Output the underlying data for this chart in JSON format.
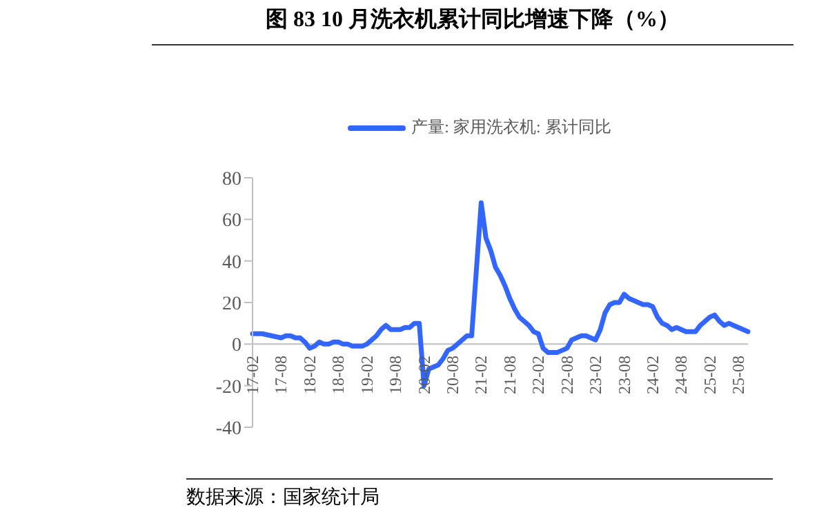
{
  "chart_data": {
    "type": "line",
    "title": "图 83 10 月洗衣机累计同比增速下降（%）",
    "categories": [
      "17-02",
      null,
      null,
      null,
      null,
      null,
      "17-08",
      null,
      null,
      null,
      null,
      null,
      "18-02",
      null,
      null,
      null,
      null,
      null,
      "18-08",
      null,
      null,
      null,
      null,
      null,
      "19-02",
      null,
      null,
      null,
      null,
      null,
      "19-08",
      null,
      null,
      null,
      null,
      null,
      "20-02",
      null,
      null,
      null,
      null,
      null,
      "20-08",
      null,
      null,
      null,
      null,
      null,
      "21-02",
      null,
      null,
      null,
      null,
      null,
      "21-08",
      null,
      null,
      null,
      null,
      null,
      "22-02",
      null,
      null,
      null,
      null,
      null,
      "22-08",
      null,
      null,
      null,
      null,
      null,
      "23-02",
      null,
      null,
      null,
      null,
      null,
      "23-08",
      null,
      null,
      null,
      null,
      null,
      "24-02",
      null,
      null,
      null,
      null,
      null,
      "24-08",
      null,
      null,
      null,
      null,
      null,
      "25-02",
      null,
      null,
      null,
      null,
      null,
      "25-08",
      null,
      null
    ],
    "series": [
      {
        "name": "产量: 家用洗衣机: 累计同比",
        "color": "#3366ff",
        "values": [
          5,
          5,
          5,
          4.5,
          4,
          3.5,
          3,
          4,
          4,
          3,
          3,
          1,
          -2,
          -1,
          1,
          0,
          0,
          1,
          1,
          0,
          0,
          -1,
          -1,
          -1,
          0,
          2,
          4,
          7,
          9,
          7,
          7,
          7,
          8,
          8,
          10,
          10,
          -20,
          -12,
          -11,
          -10,
          -7,
          -3,
          -2,
          0,
          2,
          4,
          4,
          36,
          68,
          51,
          45,
          37,
          33,
          28,
          22,
          17,
          13,
          11,
          9,
          6,
          5,
          -2,
          -4,
          -4,
          -4,
          -3,
          -2,
          2,
          3,
          4,
          4,
          3,
          2,
          7,
          15,
          19,
          20,
          20,
          24,
          22,
          21,
          20,
          19,
          19,
          18,
          13,
          10,
          9,
          7,
          8,
          7,
          6,
          6,
          6,
          9,
          11,
          13,
          14,
          11,
          9,
          10,
          9,
          8,
          7,
          6
        ]
      }
    ],
    "ylim": [
      -40,
      80
    ],
    "yticks": [
      -40,
      -20,
      0,
      20,
      40,
      60,
      80
    ],
    "legend": "top",
    "marker": "none",
    "line_style": "solid",
    "annotations": [
      "数据来源：国家统计局"
    ]
  }
}
